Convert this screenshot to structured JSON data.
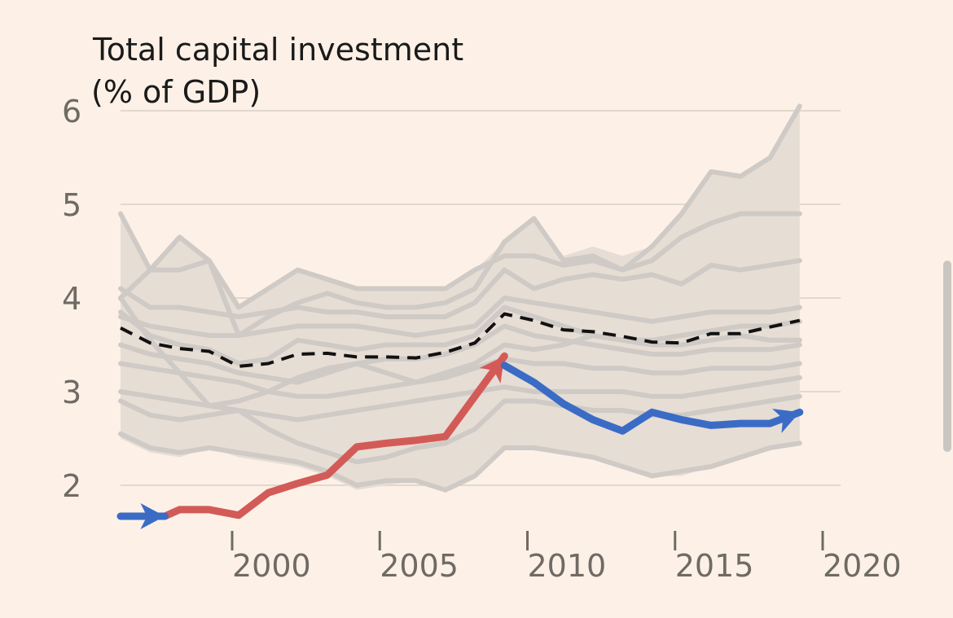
{
  "chart_data": {
    "type": "line",
    "title": "Total capital investment",
    "subtitle": "(% of GDP)",
    "xlabel": "",
    "ylabel": "",
    "xlim": [
      1995,
      2022.5
    ],
    "ylim": [
      1.5,
      6
    ],
    "y_ticks": [
      2,
      3,
      4,
      5,
      6
    ],
    "y_tick_labels": [
      "2",
      "3",
      "4",
      "5",
      "6"
    ],
    "x_ticks": [
      2000,
      2005,
      2010,
      2015,
      2020
    ],
    "x_tick_labels": [
      "2000",
      "2005",
      "2010",
      "2015",
      "2020"
    ],
    "grid": true,
    "colors": {
      "background": "#fdf1e7",
      "band": "#e6ddd5",
      "other": "#cfcac5",
      "average": "#111111",
      "rise": "#d35b57",
      "fall": "#3a6cc6"
    },
    "band": {
      "name": "range",
      "x": [
        1996,
        1997,
        1998,
        1999,
        2000,
        2001,
        2002,
        2003,
        2004,
        2005,
        2006,
        2007,
        2008,
        2009,
        2010,
        2011,
        2012,
        2013,
        2014,
        2015,
        2016,
        2017,
        2018,
        2019
      ],
      "upper": [
        4.9,
        4.3,
        4.65,
        4.4,
        3.9,
        4.1,
        4.3,
        4.2,
        4.1,
        4.1,
        4.1,
        4.1,
        4.3,
        4.6,
        4.85,
        4.45,
        4.55,
        4.45,
        4.55,
        4.9,
        5.35,
        5.3,
        5.5,
        6.05
      ],
      "lower": [
        2.5,
        2.35,
        2.3,
        2.4,
        2.3,
        2.25,
        2.2,
        2.1,
        1.95,
        2.0,
        2.05,
        1.95,
        2.1,
        2.4,
        2.4,
        2.35,
        2.3,
        2.2,
        2.1,
        2.1,
        2.2,
        2.3,
        2.4,
        2.45
      ]
    },
    "series": [
      {
        "name": "other-1",
        "role": "other",
        "x": [
          1996,
          1997,
          1998,
          1999,
          2000,
          2001,
          2002,
          2003,
          2004,
          2005,
          2006,
          2007,
          2008,
          2009,
          2010,
          2011,
          2012,
          2013,
          2014,
          2015,
          2016,
          2017,
          2018,
          2019
        ],
        "values": [
          4.9,
          4.3,
          4.3,
          4.4,
          3.9,
          4.1,
          4.3,
          4.2,
          4.1,
          4.1,
          4.1,
          4.1,
          4.3,
          4.45,
          4.45,
          4.35,
          4.4,
          4.3,
          4.55,
          4.9,
          5.35,
          5.3,
          5.5,
          6.05
        ]
      },
      {
        "name": "other-2",
        "role": "other",
        "x": [
          1996,
          1997,
          1998,
          1999,
          2000,
          2001,
          2002,
          2003,
          2004,
          2005,
          2006,
          2007,
          2008,
          2009,
          2010,
          2011,
          2012,
          2013,
          2014,
          2015,
          2016,
          2017,
          2018,
          2019
        ],
        "values": [
          4.0,
          4.3,
          4.65,
          4.4,
          3.6,
          3.8,
          3.95,
          4.05,
          3.95,
          3.9,
          3.9,
          3.95,
          4.1,
          4.6,
          4.85,
          4.4,
          4.45,
          4.3,
          4.4,
          4.65,
          4.8,
          4.9,
          4.9,
          4.9
        ]
      },
      {
        "name": "other-3",
        "role": "other",
        "x": [
          1996,
          1997,
          1998,
          1999,
          2000,
          2001,
          2002,
          2003,
          2004,
          2005,
          2006,
          2007,
          2008,
          2009,
          2010,
          2011,
          2012,
          2013,
          2014,
          2015,
          2016,
          2017,
          2018,
          2019
        ],
        "values": [
          4.1,
          3.9,
          3.9,
          3.85,
          3.8,
          3.85,
          3.9,
          3.85,
          3.85,
          3.8,
          3.8,
          3.8,
          3.95,
          4.3,
          4.1,
          4.2,
          4.25,
          4.2,
          4.25,
          4.15,
          4.35,
          4.3,
          4.35,
          4.4
        ]
      },
      {
        "name": "other-4",
        "role": "other",
        "x": [
          1996,
          1997,
          1998,
          1999,
          2000,
          2001,
          2002,
          2003,
          2004,
          2005,
          2006,
          2007,
          2008,
          2009,
          2010,
          2011,
          2012,
          2013,
          2014,
          2015,
          2016,
          2017,
          2018,
          2019
        ],
        "values": [
          3.8,
          3.7,
          3.65,
          3.6,
          3.6,
          3.65,
          3.7,
          3.7,
          3.7,
          3.65,
          3.6,
          3.65,
          3.7,
          4.0,
          3.95,
          3.9,
          3.85,
          3.8,
          3.75,
          3.8,
          3.85,
          3.85,
          3.85,
          3.9
        ]
      },
      {
        "name": "other-5",
        "role": "other",
        "x": [
          1996,
          1997,
          1998,
          1999,
          2000,
          2001,
          2002,
          2003,
          2004,
          2005,
          2006,
          2007,
          2008,
          2009,
          2010,
          2011,
          2012,
          2013,
          2014,
          2015,
          2016,
          2017,
          2018,
          2019
        ],
        "values": [
          3.85,
          3.6,
          3.5,
          3.45,
          3.3,
          3.35,
          3.55,
          3.5,
          3.45,
          3.5,
          3.5,
          3.5,
          3.6,
          3.9,
          3.8,
          3.7,
          3.6,
          3.55,
          3.5,
          3.5,
          3.55,
          3.6,
          3.55,
          3.55
        ]
      },
      {
        "name": "other-6",
        "role": "other",
        "x": [
          1996,
          1997,
          1998,
          1999,
          2000,
          2001,
          2002,
          2003,
          2004,
          2005,
          2006,
          2007,
          2008,
          2009,
          2010,
          2011,
          2012,
          2013,
          2014,
          2015,
          2016,
          2017,
          2018,
          2019
        ],
        "values": [
          3.5,
          3.4,
          3.35,
          3.3,
          3.2,
          3.15,
          3.1,
          3.2,
          3.3,
          3.35,
          3.35,
          3.4,
          3.5,
          3.7,
          3.6,
          3.55,
          3.5,
          3.45,
          3.4,
          3.4,
          3.45,
          3.45,
          3.45,
          3.5
        ]
      },
      {
        "name": "other-7",
        "role": "other",
        "x": [
          1996,
          1997,
          1998,
          1999,
          2000,
          2001,
          2002,
          2003,
          2004,
          2005,
          2006,
          2007,
          2008,
          2009,
          2010,
          2011,
          2012,
          2013,
          2014,
          2015,
          2016,
          2017,
          2018,
          2019
        ],
        "values": [
          3.3,
          3.25,
          3.2,
          3.15,
          3.1,
          3.0,
          2.95,
          2.95,
          3.0,
          3.05,
          3.1,
          3.15,
          3.25,
          3.35,
          3.3,
          3.3,
          3.25,
          3.25,
          3.2,
          3.2,
          3.25,
          3.25,
          3.25,
          3.3
        ]
      },
      {
        "name": "other-8",
        "role": "other",
        "x": [
          1996,
          1997,
          1998,
          1999,
          2000,
          2001,
          2002,
          2003,
          2004,
          2005,
          2006,
          2007,
          2008,
          2009,
          2010,
          2011,
          2012,
          2013,
          2014,
          2015,
          2016,
          2017,
          2018,
          2019
        ],
        "values": [
          3.0,
          2.95,
          2.9,
          2.85,
          2.8,
          2.75,
          2.7,
          2.75,
          2.8,
          2.85,
          2.9,
          2.95,
          3.0,
          3.05,
          3.0,
          3.0,
          3.0,
          3.0,
          2.95,
          2.95,
          3.0,
          3.05,
          3.1,
          3.15
        ]
      },
      {
        "name": "other-9",
        "role": "other",
        "x": [
          1996,
          1997,
          1998,
          1999,
          2000,
          2001,
          2002,
          2003,
          2004,
          2005,
          2006,
          2007,
          2008,
          2009,
          2010,
          2011,
          2012,
          2013,
          2014,
          2015,
          2016,
          2017,
          2018,
          2019
        ],
        "values": [
          2.9,
          2.75,
          2.7,
          2.75,
          2.8,
          2.6,
          2.45,
          2.35,
          2.25,
          2.3,
          2.4,
          2.45,
          2.6,
          2.9,
          2.9,
          2.85,
          2.8,
          2.8,
          2.75,
          2.75,
          2.8,
          2.85,
          2.9,
          2.95
        ]
      },
      {
        "name": "other-10",
        "role": "other",
        "x": [
          1996,
          1997,
          1998,
          1999,
          2000,
          2001,
          2002,
          2003,
          2004,
          2005,
          2006,
          2007,
          2008,
          2009,
          2010,
          2011,
          2012,
          2013,
          2014,
          2015,
          2016,
          2017,
          2018,
          2019
        ],
        "values": [
          2.55,
          2.4,
          2.35,
          2.4,
          2.35,
          2.3,
          2.25,
          2.15,
          2.0,
          2.05,
          2.05,
          1.95,
          2.1,
          2.4,
          2.4,
          2.35,
          2.3,
          2.2,
          2.1,
          2.15,
          2.2,
          2.3,
          2.4,
          2.45
        ]
      },
      {
        "name": "other-11",
        "role": "other",
        "x": [
          1996,
          1997,
          1998,
          1999,
          2000,
          2001,
          2002,
          2003,
          2004,
          2005,
          2006,
          2007,
          2008,
          2009,
          2010,
          2011,
          2012,
          2013,
          2014,
          2015,
          2016,
          2017,
          2018,
          2019
        ],
        "values": [
          4.0,
          3.55,
          3.2,
          2.85,
          2.9,
          3.0,
          3.15,
          3.25,
          3.3,
          3.2,
          3.1,
          3.2,
          3.3,
          3.5,
          3.45,
          3.5,
          3.6,
          3.55,
          3.55,
          3.6,
          3.65,
          3.7,
          3.7,
          3.75
        ]
      },
      {
        "name": "average",
        "role": "average",
        "dashed": true,
        "x": [
          1996,
          1997,
          1998,
          1999,
          2000,
          2001,
          2002,
          2003,
          2004,
          2005,
          2006,
          2007,
          2008,
          2009,
          2010,
          2011,
          2012,
          2013,
          2014,
          2015,
          2016,
          2017,
          2018,
          2019
        ],
        "values": [
          3.68,
          3.52,
          3.46,
          3.43,
          3.27,
          3.3,
          3.4,
          3.41,
          3.37,
          3.37,
          3.36,
          3.42,
          3.52,
          3.83,
          3.76,
          3.66,
          3.64,
          3.59,
          3.53,
          3.52,
          3.62,
          3.62,
          3.69,
          3.76
        ]
      },
      {
        "name": "rise",
        "role": "rise",
        "x": [
          1997.5,
          1998,
          1999,
          2000,
          2001,
          2002,
          2003,
          2004,
          2005,
          2006,
          2007,
          2008,
          2009
        ],
        "values": [
          1.67,
          1.74,
          1.74,
          1.68,
          1.92,
          2.02,
          2.11,
          2.41,
          2.45,
          2.48,
          2.52,
          2.95,
          3.38
        ]
      },
      {
        "name": "fall",
        "role": "fall",
        "x": [
          2009,
          2010,
          2011,
          2012,
          2013,
          2014,
          2015,
          2016,
          2017,
          2018,
          2019
        ],
        "values": [
          3.28,
          3.1,
          2.87,
          2.7,
          2.58,
          2.78,
          2.7,
          2.64,
          2.66,
          2.66,
          2.78
        ]
      },
      {
        "name": "start-marker",
        "role": "fall",
        "x": [
          1996,
          1997.5
        ],
        "values": [
          1.67,
          1.67
        ]
      }
    ]
  }
}
